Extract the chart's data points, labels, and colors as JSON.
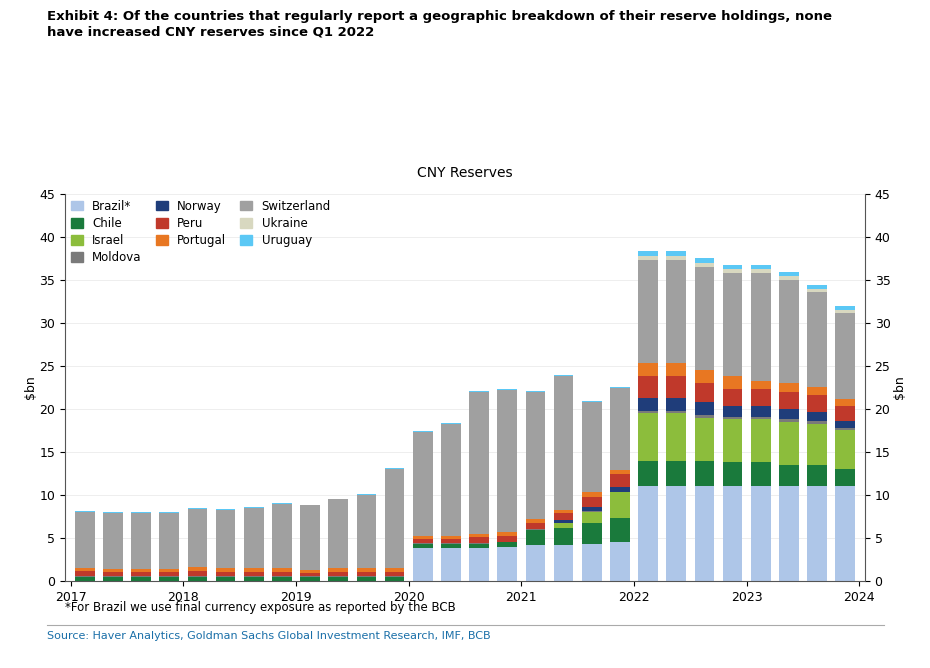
{
  "title": "Exhibit 4: Of the countries that regularly report a geographic breakdown of their reserve holdings, none\nhave increased CNY reserves since Q1 2022",
  "subtitle": "CNY Reserves",
  "ylabel": "$bn",
  "ylabel_right": "$bn",
  "footnote": "*For Brazil we use final currency exposure as reported by the BCB",
  "source": "Source: Haver Analytics, Goldman Sachs Global Investment Research, IMF, BCB",
  "ylim": [
    0,
    45
  ],
  "yticks": [
    0,
    5,
    10,
    15,
    20,
    25,
    30,
    35,
    40,
    45
  ],
  "bar_width": 0.7,
  "colors": {
    "Brazil": "#aec6e8",
    "Chile": "#1a7a3c",
    "Israel": "#8cbd3c",
    "Moldova": "#7a7a7a",
    "Norway": "#1f3d7a",
    "Peru": "#c0392b",
    "Portugal": "#e87722",
    "Switzerland": "#a0a0a0",
    "Ukraine": "#d8d8c0",
    "Uruguay": "#5bc8f5"
  },
  "data": {
    "Brazil": [
      0.0,
      0.0,
      0.0,
      0.0,
      0.0,
      0.0,
      0.0,
      0.0,
      0.0,
      0.0,
      0.0,
      0.0,
      3.8,
      3.8,
      3.8,
      4.0,
      4.2,
      4.2,
      4.3,
      4.5,
      11.0,
      11.0,
      11.0,
      11.0,
      11.0,
      11.0,
      11.0,
      11.0
    ],
    "Chile": [
      0.5,
      0.5,
      0.5,
      0.5,
      0.5,
      0.5,
      0.5,
      0.5,
      0.5,
      0.5,
      0.5,
      0.5,
      0.5,
      0.5,
      0.5,
      0.5,
      1.8,
      2.0,
      2.5,
      2.8,
      3.0,
      3.0,
      3.0,
      2.8,
      2.8,
      2.5,
      2.5,
      2.0
    ],
    "Israel": [
      0.0,
      0.0,
      0.0,
      0.0,
      0.0,
      0.0,
      0.0,
      0.0,
      0.0,
      0.0,
      0.0,
      0.0,
      0.0,
      0.0,
      0.0,
      0.0,
      0.0,
      0.5,
      1.2,
      3.0,
      5.5,
      5.5,
      5.0,
      5.0,
      5.0,
      5.0,
      4.8,
      4.5
    ],
    "Moldova": [
      0.1,
      0.1,
      0.1,
      0.1,
      0.1,
      0.1,
      0.1,
      0.1,
      0.1,
      0.1,
      0.1,
      0.1,
      0.1,
      0.1,
      0.1,
      0.1,
      0.1,
      0.1,
      0.1,
      0.1,
      0.3,
      0.3,
      0.3,
      0.3,
      0.3,
      0.3,
      0.3,
      0.3
    ],
    "Norway": [
      0.0,
      0.0,
      0.0,
      0.0,
      0.0,
      0.0,
      0.0,
      0.0,
      0.0,
      0.0,
      0.0,
      0.0,
      0.0,
      0.0,
      0.0,
      0.0,
      0.0,
      0.3,
      0.5,
      0.5,
      1.5,
      1.5,
      1.5,
      1.2,
      1.2,
      1.2,
      1.0,
      0.8
    ],
    "Peru": [
      0.6,
      0.5,
      0.5,
      0.5,
      0.6,
      0.5,
      0.5,
      0.5,
      0.4,
      0.5,
      0.5,
      0.5,
      0.5,
      0.5,
      0.7,
      0.7,
      0.7,
      0.8,
      1.2,
      1.5,
      2.5,
      2.5,
      2.2,
      2.0,
      2.0,
      2.0,
      2.0,
      1.8
    ],
    "Portugal": [
      0.3,
      0.3,
      0.3,
      0.3,
      0.4,
      0.4,
      0.4,
      0.4,
      0.3,
      0.4,
      0.4,
      0.4,
      0.4,
      0.4,
      0.4,
      0.4,
      0.4,
      0.4,
      0.5,
      0.5,
      1.5,
      1.5,
      1.5,
      1.5,
      1.0,
      1.0,
      1.0,
      0.8
    ],
    "Switzerland": [
      6.5,
      6.5,
      6.5,
      6.5,
      6.8,
      6.8,
      7.0,
      7.5,
      7.5,
      8.0,
      8.5,
      11.5,
      12.0,
      13.0,
      16.5,
      16.5,
      14.8,
      15.5,
      10.5,
      9.5,
      12.0,
      12.0,
      12.0,
      12.0,
      12.5,
      12.0,
      11.0,
      10.0
    ],
    "Ukraine": [
      0.0,
      0.0,
      0.0,
      0.0,
      0.0,
      0.0,
      0.0,
      0.0,
      0.0,
      0.0,
      0.0,
      0.0,
      0.0,
      0.0,
      0.0,
      0.0,
      0.0,
      0.0,
      0.0,
      0.0,
      0.5,
      0.5,
      0.5,
      0.4,
      0.4,
      0.4,
      0.3,
      0.3
    ],
    "Uruguay": [
      0.1,
      0.1,
      0.1,
      0.1,
      0.1,
      0.1,
      0.1,
      0.1,
      0.1,
      0.1,
      0.1,
      0.1,
      0.1,
      0.1,
      0.1,
      0.1,
      0.1,
      0.1,
      0.1,
      0.2,
      0.5,
      0.5,
      0.5,
      0.5,
      0.5,
      0.5,
      0.5,
      0.5
    ]
  },
  "stack_order": [
    "Brazil",
    "Chile",
    "Israel",
    "Moldova",
    "Norway",
    "Peru",
    "Portugal",
    "Switzerland",
    "Ukraine",
    "Uruguay"
  ],
  "legend_order": [
    "Brazil",
    "Chile",
    "Israel",
    "Moldova",
    "Norway",
    "Peru",
    "Portugal",
    "Switzerland",
    "Ukraine",
    "Uruguay"
  ],
  "legend_labels": [
    "Brazil*",
    "Chile",
    "Israel",
    "Moldova",
    "Norway",
    "Peru",
    "Portugal",
    "Switzerland",
    "Ukraine",
    "Uruguay"
  ],
  "x_tick_labels": [
    "2017",
    "2018",
    "2019",
    "2020",
    "2021",
    "2022",
    "2023",
    "2024"
  ]
}
